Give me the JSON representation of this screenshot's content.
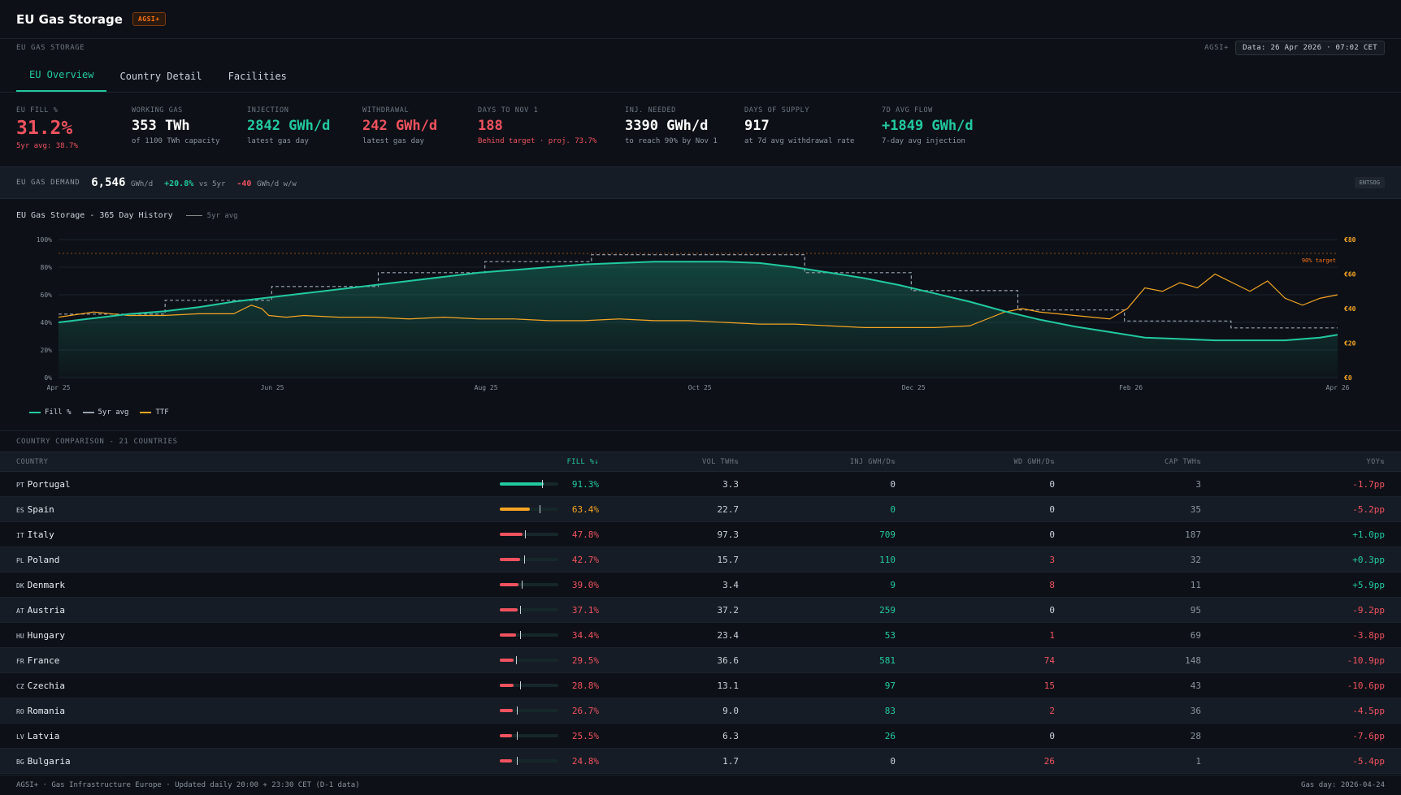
{
  "header": {
    "title": "EU Gas Storage",
    "badge": "AGSI+"
  },
  "subheader": {
    "left": "EU GAS STORAGE",
    "source": "AGSI+",
    "stamp": "Data: 26 Apr 2026 · 07:02 CET"
  },
  "tabs": [
    {
      "label": "EU Overview",
      "active": true
    },
    {
      "label": "Country Detail",
      "active": false
    },
    {
      "label": "Facilities",
      "active": false
    }
  ],
  "kpis": {
    "fill": {
      "label": "EU FILL %",
      "value": "31.2%",
      "note": "5yr avg: 38.7%"
    },
    "working": {
      "label": "WORKING GAS",
      "value": "353 TWh",
      "note": "of 1100 TWh capacity"
    },
    "injection": {
      "label": "INJECTION",
      "value": "2842 GWh/d",
      "note": "latest gas day"
    },
    "withdrawal": {
      "label": "WITHDRAWAL",
      "value": "242 GWh/d",
      "note": "latest gas day"
    },
    "days_nov": {
      "label": "DAYS TO NOV 1",
      "value": "188",
      "note": "Behind target · proj. 73.7%"
    },
    "inj_needed": {
      "label": "INJ. NEEDED",
      "value": "3390 GWh/d",
      "note": "to reach 90% by Nov 1"
    },
    "supply": {
      "label": "DAYS OF SUPPLY",
      "value": "917",
      "note": "at 7d avg withdrawal rate"
    },
    "flow": {
      "label": "7D AVG FLOW",
      "value": "+1849 GWh/d",
      "note": "7-day avg injection"
    }
  },
  "demand": {
    "label": "EU GAS DEMAND",
    "value": "6,546",
    "unit": "GWh/d",
    "vs5yr": "+20.8%",
    "vs5yr_label": "vs 5yr",
    "wow": "-40",
    "wow_label": "GWh/d w/w",
    "source": "ENTSOG"
  },
  "chart_data": {
    "type": "line",
    "title": "EU Gas Storage - 365 Day History",
    "title_legend": "5yr avg",
    "x_ticks": [
      "Apr 25",
      "Jun 25",
      "Aug 25",
      "Oct 25",
      "Dec 25",
      "Feb 26",
      "Apr 26"
    ],
    "y_left_ticks": [
      "0%",
      "20%",
      "40%",
      "60%",
      "80%",
      "100%"
    ],
    "y_right_ticks": [
      "€0",
      "€20",
      "€40",
      "€60",
      "€80"
    ],
    "ylim_left": [
      0,
      100
    ],
    "ylim_right": [
      0,
      80
    ],
    "target_label": "90% target",
    "target": 90,
    "grid": true,
    "legend_position": "bottom-left",
    "colors": {
      "fill": "#22c9a0",
      "avg": "#9aa4b0",
      "ttf": "#f5a524",
      "target": "#f97316"
    },
    "fill_pct": {
      "x": [
        0,
        10,
        20,
        30,
        40,
        50,
        60,
        70,
        80,
        90,
        100,
        110,
        120,
        130,
        140,
        150,
        160,
        170,
        180,
        190,
        200,
        210,
        220,
        230,
        240,
        250,
        260,
        270,
        280,
        290,
        300,
        310,
        320,
        330,
        340,
        350,
        360,
        365
      ],
      "y": [
        40,
        43,
        46,
        48,
        51,
        55,
        58,
        61,
        64,
        67,
        70,
        73,
        76,
        78,
        80,
        82,
        83,
        84,
        84,
        84,
        83,
        80,
        76,
        72,
        67,
        61,
        55,
        48,
        42,
        37,
        33,
        29,
        28,
        27,
        27,
        27,
        29,
        31
      ]
    },
    "avg_5yr": {
      "months": [
        "Apr",
        "May",
        "Jun",
        "Jul",
        "Aug",
        "Sep",
        "Oct",
        "Nov",
        "Dec",
        "Jan",
        "Feb",
        "Mar"
      ],
      "values": [
        46,
        56,
        66,
        76,
        84,
        89,
        89,
        76,
        63,
        49,
        41,
        36
      ]
    },
    "ttf": {
      "x": [
        0,
        10,
        20,
        30,
        40,
        50,
        55,
        58,
        60,
        65,
        70,
        80,
        90,
        100,
        110,
        120,
        130,
        140,
        150,
        160,
        170,
        180,
        190,
        200,
        210,
        220,
        230,
        240,
        250,
        260,
        265,
        270,
        275,
        280,
        290,
        300,
        305,
        310,
        315,
        320,
        325,
        330,
        335,
        340,
        345,
        350,
        355,
        360,
        365
      ],
      "y": [
        35,
        38,
        36,
        36,
        37,
        37,
        42,
        40,
        36,
        35,
        36,
        35,
        35,
        34,
        35,
        34,
        34,
        33,
        33,
        34,
        33,
        33,
        32,
        31,
        31,
        30,
        29,
        29,
        29,
        30,
        34,
        38,
        40,
        38,
        36,
        34,
        40,
        52,
        50,
        55,
        52,
        60,
        55,
        50,
        56,
        46,
        42,
        46,
        48
      ]
    }
  },
  "legend": {
    "fill": "Fill %",
    "avg": "5yr avg",
    "ttf": "TTF"
  },
  "comparison": {
    "title": "COUNTRY COMPARISON - 21 COUNTRIES",
    "columns": {
      "country": "COUNTRY",
      "fill": "FILL %↓",
      "vol": "VOL TWH⇅",
      "inj": "INJ GWH/D⇅",
      "wd": "WD GWH/D⇅",
      "cap": "CAP TWH⇅",
      "yoy": "YOY⇅"
    },
    "rows": [
      {
        "code": "PT",
        "name": "Portugal",
        "fill": "91.3%",
        "fill_value": 91.3,
        "avg": 88,
        "vol": "3.3",
        "inj": "0",
        "wd": "0",
        "cap": "3",
        "yoy": "-1.7pp"
      },
      {
        "code": "ES",
        "name": "Spain",
        "fill": "63.4%",
        "fill_value": 63.4,
        "avg": 83,
        "vol": "22.7",
        "inj": "0",
        "wd": "0",
        "cap": "35",
        "yoy": "-5.2pp"
      },
      {
        "code": "IT",
        "name": "Italy",
        "fill": "47.8%",
        "fill_value": 47.8,
        "avg": 52,
        "vol": "97.3",
        "inj": "709",
        "wd": "0",
        "cap": "187",
        "yoy": "+1.0pp"
      },
      {
        "code": "PL",
        "name": "Poland",
        "fill": "42.7%",
        "fill_value": 42.7,
        "avg": 50,
        "vol": "15.7",
        "inj": "110",
        "wd": "3",
        "cap": "32",
        "yoy": "+0.3pp"
      },
      {
        "code": "DK",
        "name": "Denmark",
        "fill": "39.0%",
        "fill_value": 39.0,
        "avg": 45,
        "vol": "3.4",
        "inj": "9",
        "wd": "8",
        "cap": "11",
        "yoy": "+5.9pp"
      },
      {
        "code": "AT",
        "name": "Austria",
        "fill": "37.1%",
        "fill_value": 37.1,
        "avg": 43,
        "vol": "37.2",
        "inj": "259",
        "wd": "0",
        "cap": "95",
        "yoy": "-9.2pp"
      },
      {
        "code": "HU",
        "name": "Hungary",
        "fill": "34.4%",
        "fill_value": 34.4,
        "avg": 43,
        "vol": "23.4",
        "inj": "53",
        "wd": "1",
        "cap": "69",
        "yoy": "-3.8pp"
      },
      {
        "code": "FR",
        "name": "France",
        "fill": "29.5%",
        "fill_value": 29.5,
        "avg": 34,
        "vol": "36.6",
        "inj": "581",
        "wd": "74",
        "cap": "148",
        "yoy": "-10.9pp"
      },
      {
        "code": "CZ",
        "name": "Czechia",
        "fill": "28.8%",
        "fill_value": 28.8,
        "avg": 43,
        "vol": "13.1",
        "inj": "97",
        "wd": "15",
        "cap": "43",
        "yoy": "-10.6pp"
      },
      {
        "code": "RO",
        "name": "Romania",
        "fill": "26.7%",
        "fill_value": 26.7,
        "avg": 35,
        "vol": "9.0",
        "inj": "83",
        "wd": "2",
        "cap": "36",
        "yoy": "-4.5pp"
      },
      {
        "code": "LV",
        "name": "Latvia",
        "fill": "25.5%",
        "fill_value": 25.5,
        "avg": 35,
        "vol": "6.3",
        "inj": "26",
        "wd": "0",
        "cap": "28",
        "yoy": "-7.6pp"
      },
      {
        "code": "BG",
        "name": "Bulgaria",
        "fill": "24.8%",
        "fill_value": 24.8,
        "avg": 35,
        "vol": "1.7",
        "inj": "0",
        "wd": "26",
        "cap": "1",
        "yoy": "-5.4pp"
      }
    ]
  },
  "footer": {
    "left": "AGSI+ · Gas Infrastructure Europe · Updated daily 20:00 + 23:30 CET (D-1 data)",
    "right": "Gas day: 2026-04-24"
  }
}
